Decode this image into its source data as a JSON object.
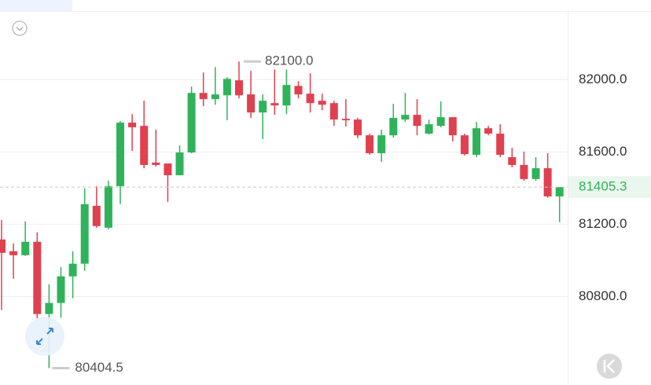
{
  "chart_data": {
    "type": "candlestick",
    "open": [
      81116,
      81051,
      81029,
      81103,
      80704,
      80765,
      80912,
      80982,
      81302,
      81181,
      81411,
      81762,
      81744,
      81541,
      81536,
      81471,
      81597,
      81926,
      81892,
      81913,
      81996,
      81918,
      81818,
      81870,
      81857,
      81965,
      81922,
      81883,
      81870,
      81783,
      81779,
      81692,
      81593,
      81692,
      81779,
      81805,
      81701,
      81744,
      81792,
      81692,
      81584,
      81731,
      81701,
      81571,
      81528,
      81450,
      81510,
      81354
    ],
    "high": [
      81224,
      81094,
      81216,
      81155,
      80869,
      80964,
      81051,
      81398,
      81411,
      81441,
      81770,
      81809,
      81883,
      81723,
      81536,
      81636,
      81961,
      82039,
      82069,
      82013,
      82100,
      82048,
      81918,
      82056,
      82056,
      81991,
      82035,
      81922,
      81883,
      81892,
      81788,
      81701,
      81723,
      81866,
      81926,
      81892,
      81779,
      81879,
      81792,
      81701,
      81766,
      81744,
      81753,
      81623,
      81601,
      81571,
      81593,
      81405.3
    ],
    "low": [
      80726,
      80899,
      81025,
      80674,
      80404.5,
      80683,
      80791,
      80943,
      81181,
      81172,
      81311,
      81606,
      81510,
      81519,
      81324,
      81471,
      81593,
      81853,
      81861,
      81775,
      81896,
      81788,
      81671,
      81805,
      81809,
      81896,
      81818,
      81831,
      81744,
      81740,
      81675,
      81584,
      81545,
      81679,
      81766,
      81692,
      81697,
      81736,
      81658,
      81580,
      81571,
      81692,
      81571,
      81515,
      81441,
      81441,
      81346,
      81211
    ],
    "close": [
      81042,
      81029,
      81103,
      80704,
      80765,
      80912,
      80982,
      81311,
      81190,
      81411,
      81762,
      81736,
      81528,
      81528,
      81471,
      81597,
      81926,
      81892,
      81918,
      82004,
      81913,
      81818,
      81883,
      81857,
      81970,
      81918,
      81870,
      81861,
      81779,
      81775,
      81692,
      81593,
      81692,
      81788,
      81805,
      81744,
      81753,
      81792,
      81692,
      81588,
      81731,
      81701,
      81584,
      81528,
      81450,
      81510,
      81354,
      81405.3
    ],
    "up_color": "#2fb35a",
    "down_color": "#e0404f",
    "ylim": [
      80320,
      82440
    ],
    "yticks": [
      {
        "value": 80800,
        "label": "80800.0"
      },
      {
        "value": 81200,
        "label": "81200.0"
      },
      {
        "value": 81600,
        "label": "81600.0"
      },
      {
        "value": 82000,
        "label": "82000.0"
      }
    ],
    "grid": true,
    "max_label": {
      "value": 82100,
      "label": "82100.0"
    },
    "min_label": 80404.5,
    "last_price": 81405.3
  }
}
